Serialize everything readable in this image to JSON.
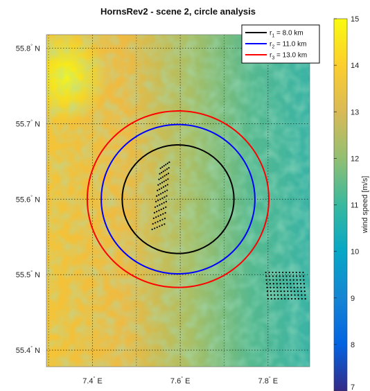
{
  "title": "HornsRev2 - scene 2, circle analysis",
  "map": {
    "lon_range": [
      7.295,
      7.895
    ],
    "lat_range": [
      55.378,
      55.818
    ],
    "lon_ticks": [
      7.4,
      7.6,
      7.8
    ],
    "lat_ticks": [
      55.4,
      55.5,
      55.6,
      55.7,
      55.8
    ],
    "lon_tick_labels": [
      "7.4",
      "7.6",
      "7.8"
    ],
    "lat_tick_labels": [
      "55.4",
      "55.5",
      "55.6",
      "55.7",
      "55.8"
    ],
    "lon_suffix": " E",
    "lat_suffix": " N",
    "degree_symbol": "°",
    "grid": "dotted",
    "center": {
      "lon": 7.595,
      "lat": 55.6
    },
    "circles": [
      {
        "sym": "r",
        "sub": "1",
        "label": " = 8.0 km",
        "radius_km": 8.0,
        "color": "#000000"
      },
      {
        "sym": "r",
        "sub": "2",
        "label": " = 11.0 km",
        "radius_km": 11.0,
        "color": "#0000ff"
      },
      {
        "sym": "r",
        "sub": "3",
        "label": " = 13.0 km",
        "radius_km": 13.0,
        "color": "#ff0000"
      }
    ],
    "legend_position": "top-right",
    "wind_field_trend": "higher (~14–15 m/s) in the west, lower (~10–11 m/s) in the east",
    "turbine_farms": [
      {
        "name": "centre",
        "corner_a": {
          "lon": 7.555,
          "lat": 55.641
        },
        "corner_b": {
          "lon": 7.575,
          "lat": 55.649
        },
        "corner_c": {
          "lon": 7.536,
          "lat": 55.56
        },
        "corner_d": {
          "lon": 7.564,
          "lat": 55.567
        },
        "rows": 12,
        "cols": 6
      },
      {
        "name": "south-east",
        "corner_a": {
          "lon": 7.795,
          "lat": 55.503
        },
        "corner_b": {
          "lon": 7.88,
          "lat": 55.503
        },
        "corner_c": {
          "lon": 7.8,
          "lat": 55.468
        },
        "corner_d": {
          "lon": 7.885,
          "lat": 55.468
        },
        "rows": 8,
        "cols": 12
      }
    ]
  },
  "colorbar": {
    "label": "wind speed [m/s]",
    "min": 7,
    "max": 15,
    "ticks": [
      7,
      8,
      9,
      10,
      11,
      12,
      13,
      14,
      15
    ],
    "tick_labels": [
      "7",
      "8",
      "9",
      "10",
      "11",
      "12",
      "13",
      "14",
      "15"
    ],
    "colormap": "parula",
    "stops": [
      "#352a87",
      "#0363e1",
      "#1485d4",
      "#06a7c6",
      "#38b99e",
      "#92bf73",
      "#d9ba56",
      "#fcce2e",
      "#f9fb0e"
    ]
  }
}
